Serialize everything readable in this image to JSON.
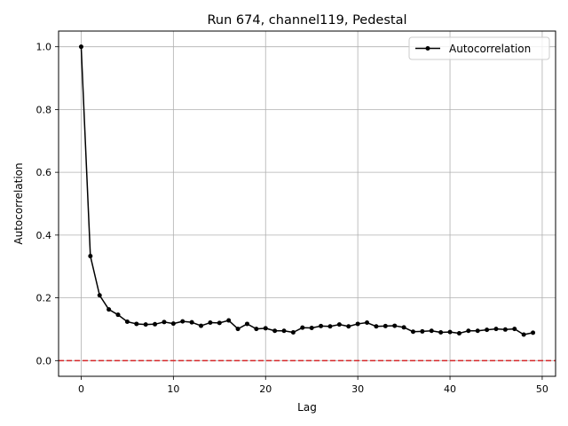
{
  "chart_data": {
    "type": "line",
    "title": "Run 674, channel119, Pedestal",
    "xlabel": "Lag",
    "ylabel": "Autocorrelation",
    "xlim": [
      -2.45,
      51.45
    ],
    "ylim": [
      -0.05,
      1.05
    ],
    "xticks": [
      0,
      10,
      20,
      30,
      40,
      50
    ],
    "yticks": [
      0.0,
      0.2,
      0.4,
      0.6,
      0.8,
      1.0
    ],
    "xtick_labels": [
      "0",
      "10",
      "20",
      "30",
      "40",
      "50"
    ],
    "ytick_labels": [
      "0.0",
      "0.2",
      "0.4",
      "0.6",
      "0.8",
      "1.0"
    ],
    "grid": true,
    "legend": {
      "position": "top-right",
      "entries": [
        "Autocorrelation"
      ]
    },
    "reference_line": {
      "y": 0.0,
      "color": "#d62728",
      "style": "dashed"
    },
    "series": [
      {
        "name": "Autocorrelation",
        "color": "#000000",
        "marker": "circle",
        "x": [
          0,
          1,
          2,
          3,
          4,
          5,
          6,
          7,
          8,
          9,
          10,
          11,
          12,
          13,
          14,
          15,
          16,
          17,
          18,
          19,
          20,
          21,
          22,
          23,
          24,
          25,
          26,
          27,
          28,
          29,
          30,
          31,
          32,
          33,
          34,
          35,
          36,
          37,
          38,
          39,
          40,
          41,
          42,
          43,
          44,
          45,
          46,
          47,
          48,
          49
        ],
        "y": [
          1.0,
          0.333,
          0.208,
          0.163,
          0.146,
          0.124,
          0.117,
          0.115,
          0.116,
          0.123,
          0.118,
          0.125,
          0.122,
          0.111,
          0.121,
          0.12,
          0.128,
          0.101,
          0.117,
          0.101,
          0.103,
          0.095,
          0.095,
          0.09,
          0.105,
          0.104,
          0.11,
          0.109,
          0.115,
          0.109,
          0.117,
          0.121,
          0.109,
          0.11,
          0.111,
          0.106,
          0.092,
          0.093,
          0.095,
          0.09,
          0.091,
          0.087,
          0.095,
          0.095,
          0.098,
          0.101,
          0.099,
          0.101,
          0.083,
          0.089
        ]
      }
    ]
  }
}
